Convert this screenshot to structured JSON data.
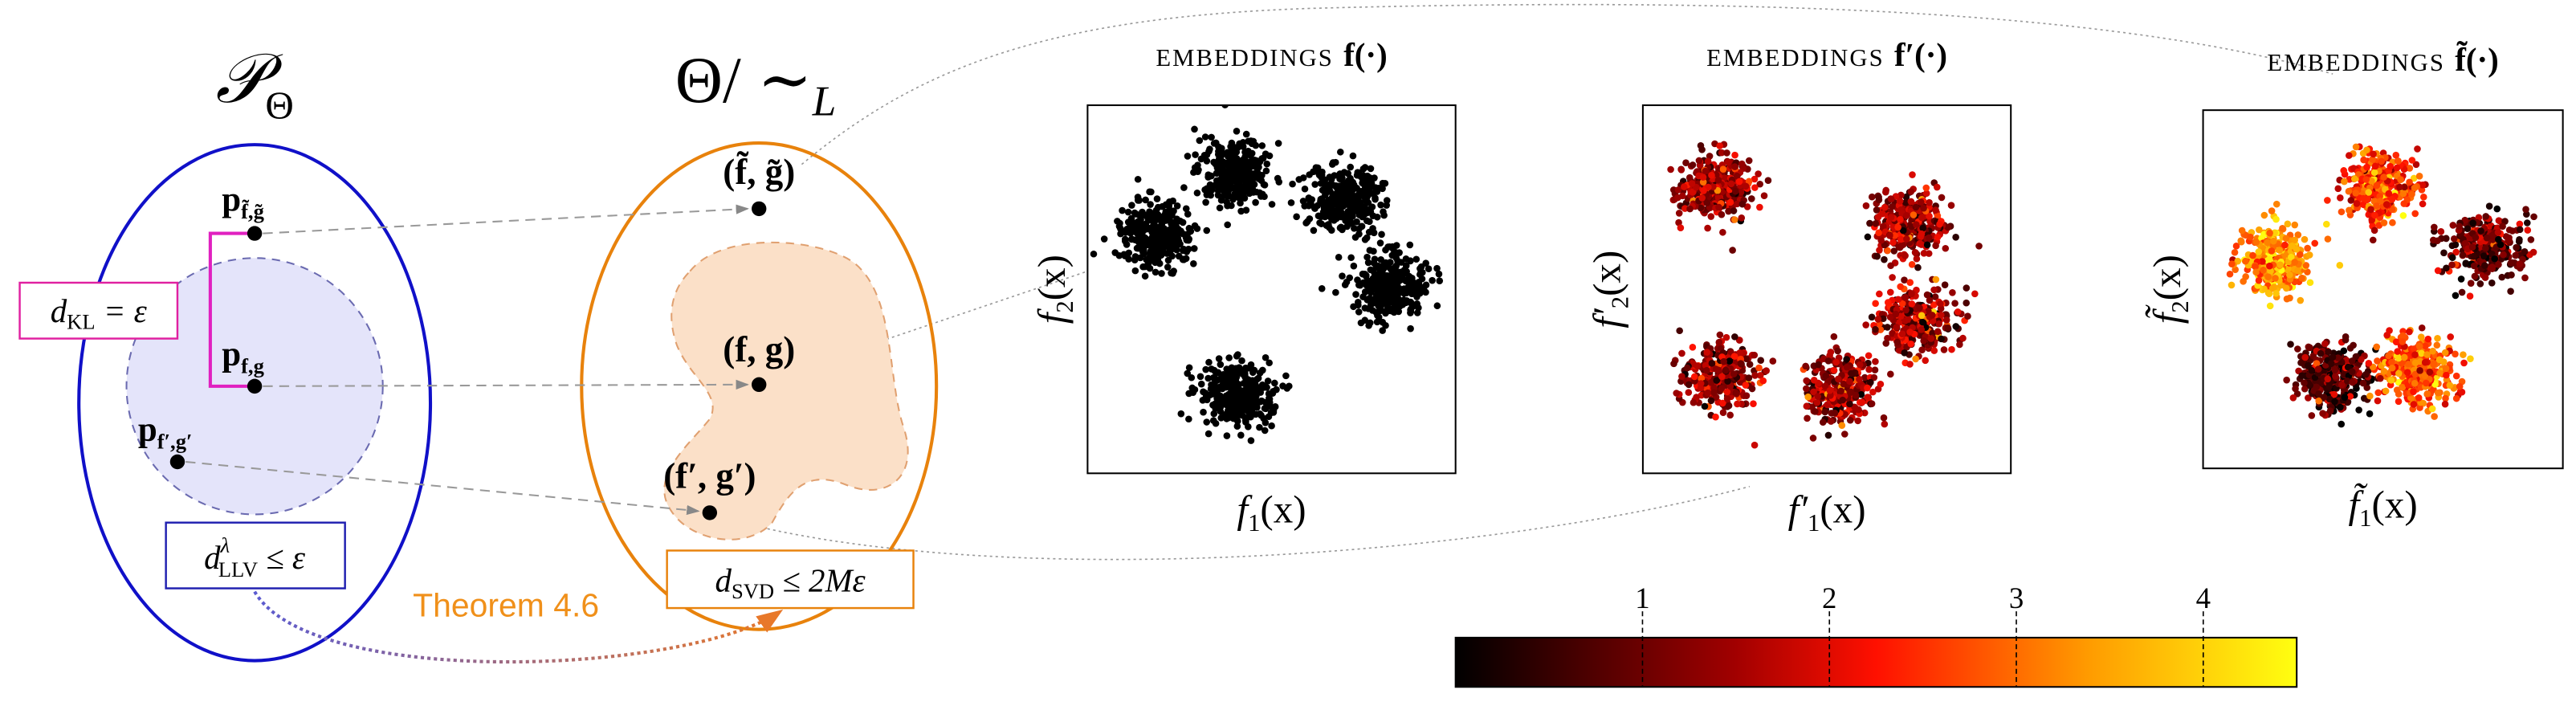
{
  "left_space": {
    "title": "𝒫",
    "title_sub": "Θ",
    "points": [
      {
        "main": "p",
        "sub": "f̃,g̃"
      },
      {
        "main": "p",
        "sub": "f,g"
      },
      {
        "main": "p",
        "sub": "f′,g′"
      }
    ],
    "kl_box": {
      "main": "d",
      "sub": "KL",
      "rest": " = ε"
    },
    "llv_box": {
      "main": "d",
      "sup": "λ",
      "sub": "LLV",
      "rest": " ≤ ε"
    }
  },
  "right_space": {
    "title": "Θ/ ∼",
    "title_sub": "L",
    "points": [
      "(f̃, g̃)",
      "(f, g)",
      "(f′, g′)"
    ],
    "svd_box": {
      "main": "d",
      "sub": "SVD",
      "rest": " ≤ 2Mε"
    },
    "theorem": "Theorem 4.6"
  },
  "plots": [
    {
      "caption": "EMBEDDINGS",
      "symbol": "f(·)",
      "ylabel": "f",
      "ylabel_sub": "2",
      "ylabel_rest": "(x)",
      "xlabel": "f",
      "xlabel_sub": "1",
      "xlabel_rest": "(x)"
    },
    {
      "caption": "EMBEDDINGS",
      "symbol": "f′(·)",
      "ylabel": "f′",
      "ylabel_sub": "2",
      "ylabel_rest": "(x)",
      "xlabel": "f′",
      "xlabel_sub": "1",
      "xlabel_rest": "(x)"
    },
    {
      "caption": "EMBEDDINGS",
      "symbol": "f̃(·)",
      "ylabel": "f̃",
      "ylabel_sub": "2",
      "ylabel_rest": "(x)",
      "xlabel": "f̃",
      "xlabel_sub": "1",
      "xlabel_rest": "(x)"
    }
  ],
  "colorbar": {
    "ticks": [
      "1",
      "2",
      "3",
      "4"
    ]
  }
}
